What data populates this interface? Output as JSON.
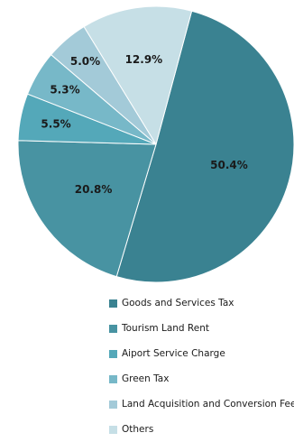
{
  "chart_data": {
    "type": "pie",
    "title": "",
    "slices": [
      {
        "name": "Goods and Services Tax",
        "value": 50.4,
        "label": "50.4%",
        "color": "#3a8291"
      },
      {
        "name": "Tourism Land Rent",
        "value": 20.8,
        "label": "20.8%",
        "color": "#4893a2"
      },
      {
        "name": "Aiport Service Charge",
        "value": 5.5,
        "label": "5.5%",
        "color": "#54a8b9"
      },
      {
        "name": "Green Tax",
        "value": 5.3,
        "label": "5.3%",
        "color": "#77b8c8"
      },
      {
        "name": "Land Acquisition and Conversion Fee",
        "value": 5.0,
        "label": "5.0%",
        "color": "#a3cad8"
      },
      {
        "name": "Others",
        "value": 12.9,
        "label": "12.9%",
        "color": "#c6dfe6"
      }
    ],
    "legend_position": "bottom"
  }
}
